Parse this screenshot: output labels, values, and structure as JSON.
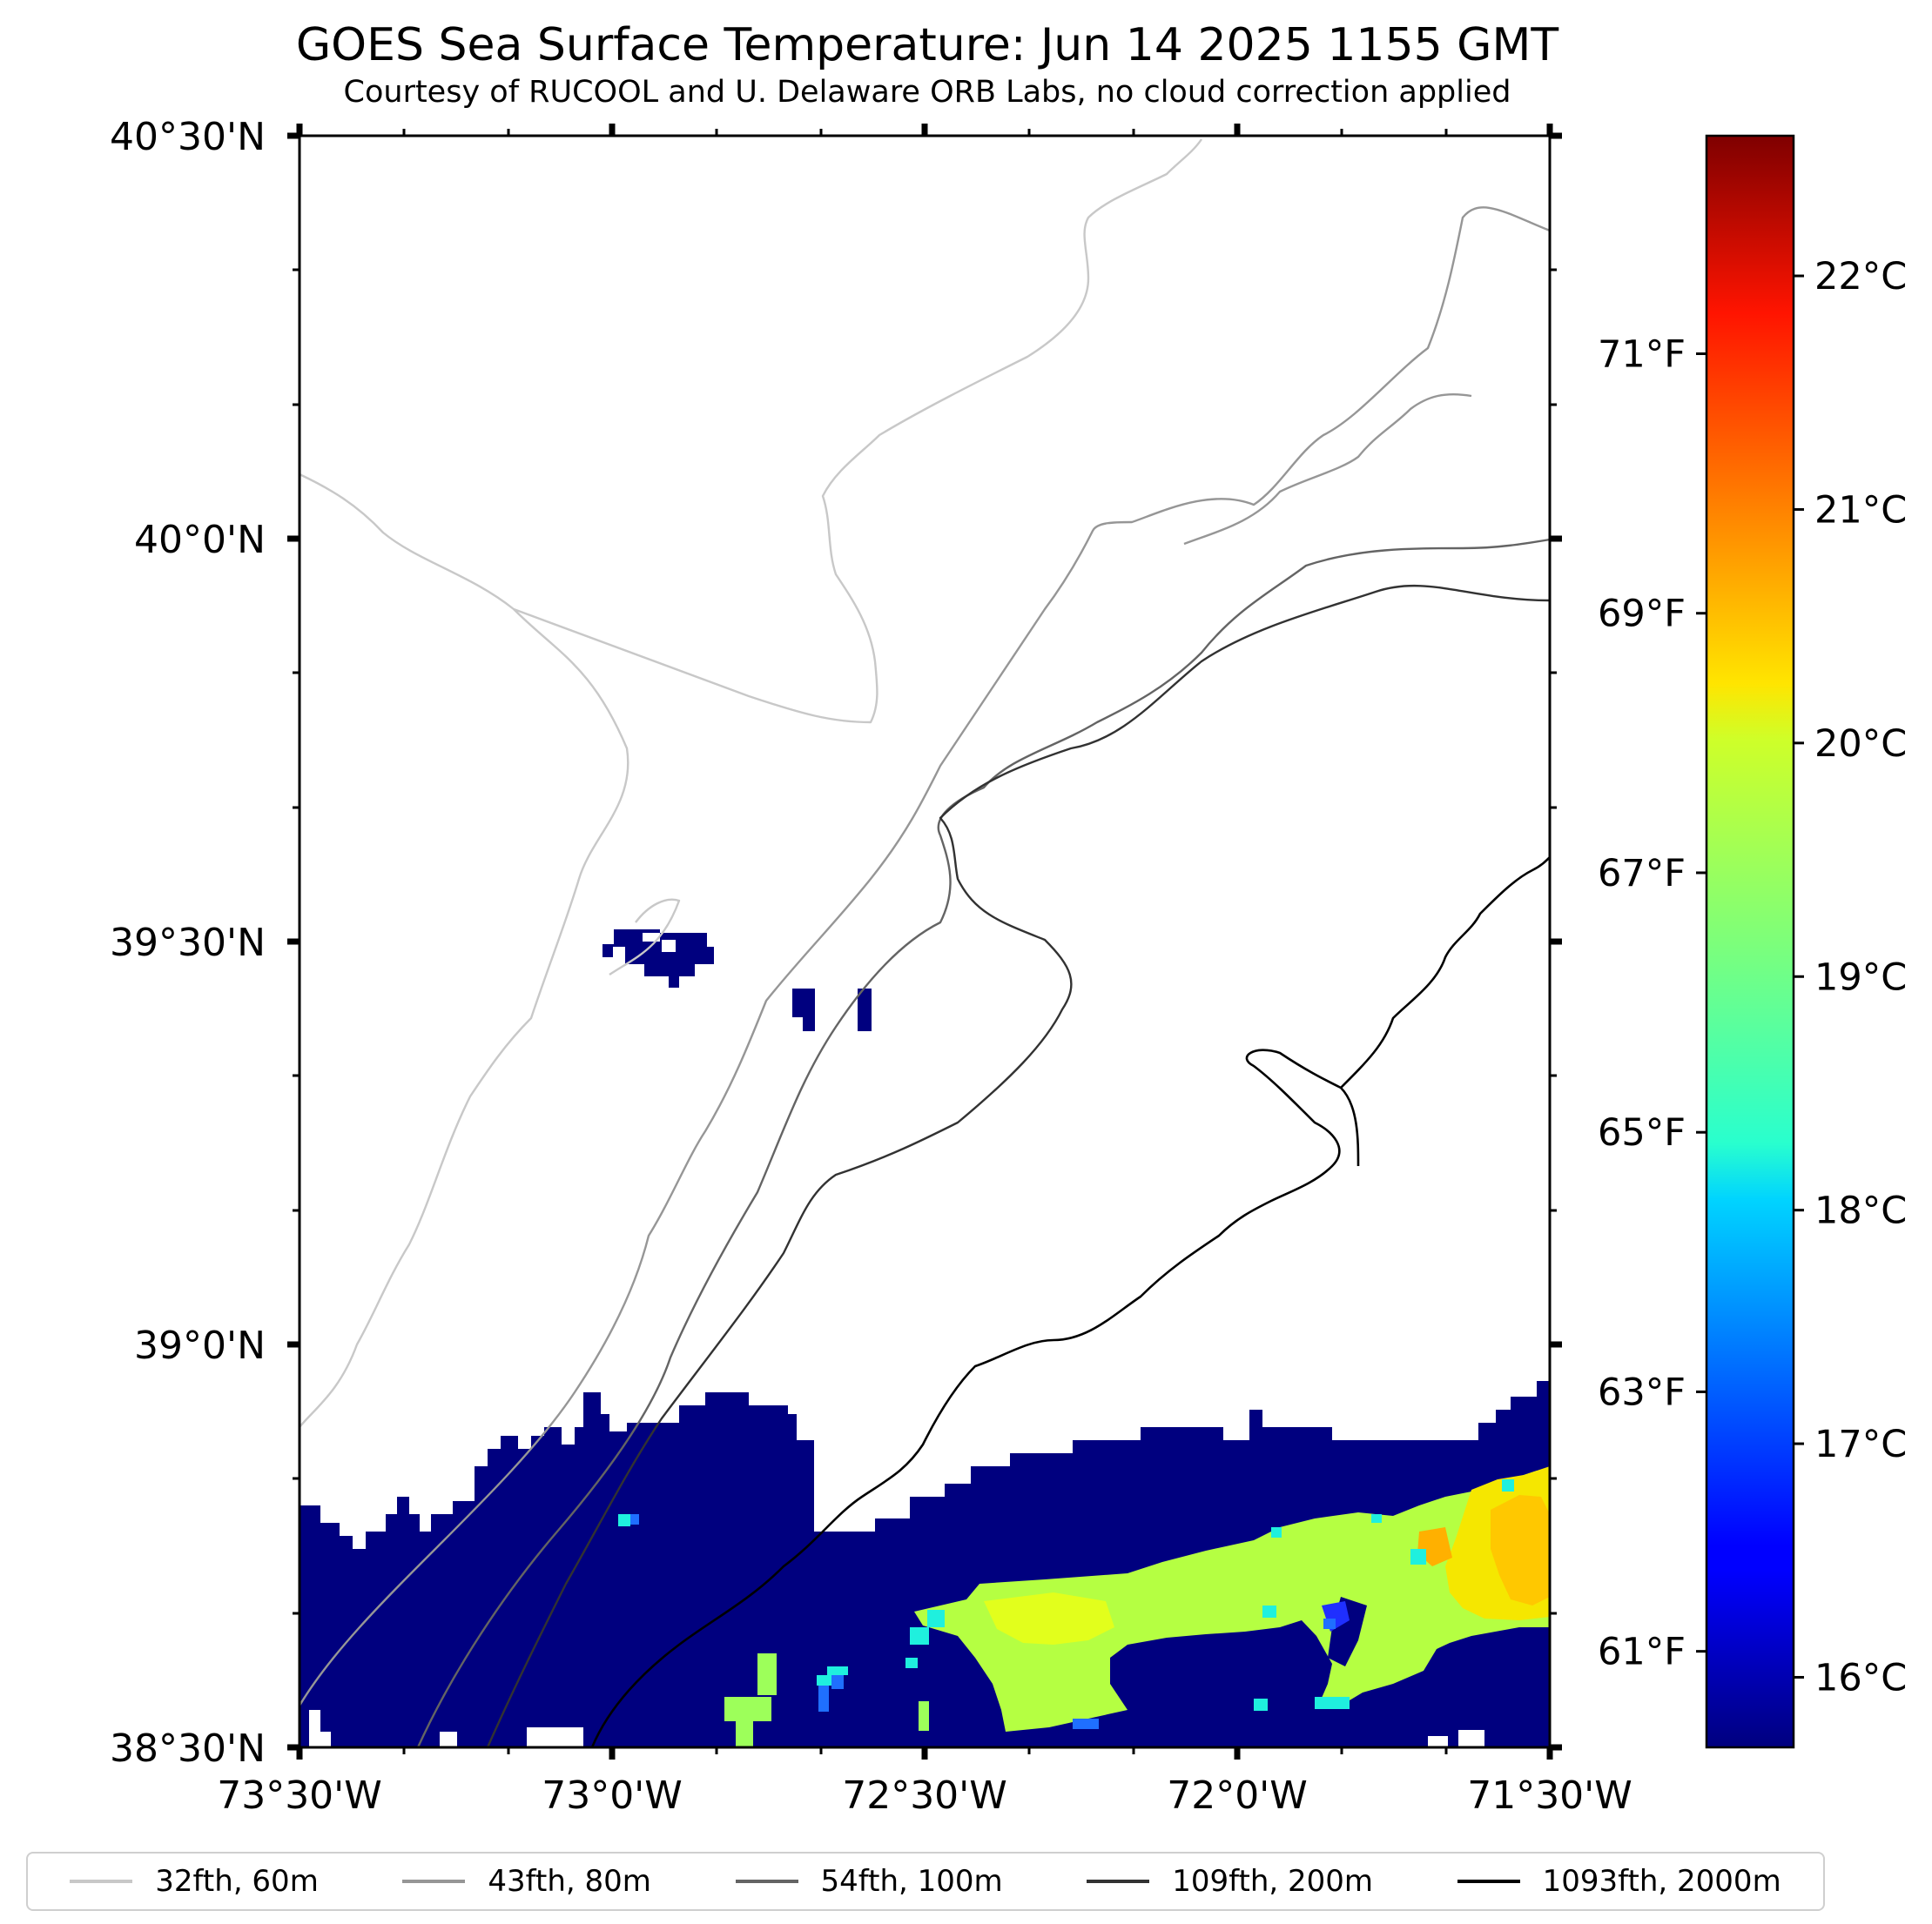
{
  "title": "GOES Sea Surface Temperature: Jun 14 2025 1155 GMT",
  "subtitle": "Courtesy of RUCOOL and U. Delaware ORB Labs, no cloud correction applied",
  "chart_data": {
    "type": "heatmap",
    "map_extent": {
      "lon": [
        -73.5,
        -71.5
      ],
      "lat": [
        38.5,
        40.5
      ]
    },
    "lat_tick_labels": [
      "40°30'N",
      "40°0'N",
      "39°30'N",
      "39°0'N",
      "38°30'N"
    ],
    "lon_tick_labels": [
      "73°30'W",
      "73°0'W",
      "72°30'W",
      "72°0'W",
      "71°30'W"
    ],
    "colorbar": {
      "range_c": [
        15.7,
        22.6
      ],
      "celsius_labels": [
        "22°C",
        "21°C",
        "20°C",
        "19°C",
        "18°C",
        "17°C",
        "16°C"
      ],
      "celsius_values": [
        22,
        21,
        20,
        19,
        18,
        17,
        16
      ],
      "fahrenheit_labels": [
        "71°F",
        "69°F",
        "67°F",
        "65°F",
        "63°F",
        "61°F"
      ],
      "fahrenheit_values": [
        71,
        69,
        67,
        65,
        63,
        61
      ],
      "colormap": "jet"
    },
    "sst_regions_c": [
      {
        "area": "southern band, 38.5-38.9°N",
        "approx_c": 15.8
      },
      {
        "area": "small patch near 39.5°N 72.9°W",
        "approx_c": 15.8
      },
      {
        "area": "warm tongue near 38.7°N 72.0°W",
        "approx_c": 19.8
      },
      {
        "area": "warm core near 38.8°N 71.6°W",
        "approx_c": 20.5
      }
    ],
    "legend": [
      {
        "label": "32fth, 60m",
        "color": "#c8c8c8"
      },
      {
        "label": "43fth, 80m",
        "color": "#969696"
      },
      {
        "label": "54fth, 100m",
        "color": "#646464"
      },
      {
        "label": "109fth, 200m",
        "color": "#323232"
      },
      {
        "label": "1093fth, 2000m",
        "color": "#000000"
      }
    ],
    "legend_placement": "bottom",
    "grid": false
  }
}
